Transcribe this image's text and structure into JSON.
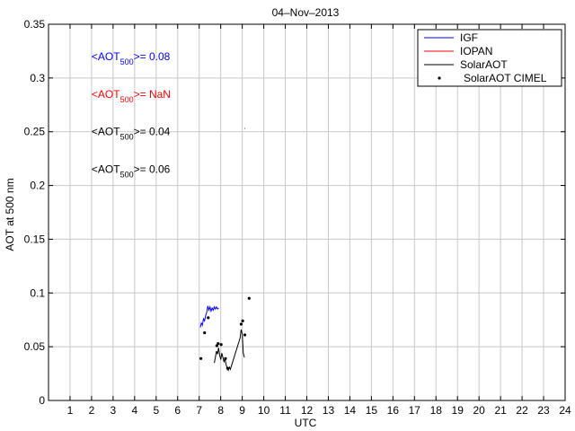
{
  "chart_data": {
    "type": "line",
    "title": "04–Nov–2013",
    "xlabel": "UTC",
    "ylabel": "AOT at 500 nm",
    "xlim": [
      0,
      24
    ],
    "ylim": [
      0,
      0.35
    ],
    "x_ticks": [
      1,
      2,
      3,
      4,
      5,
      6,
      7,
      8,
      9,
      10,
      11,
      12,
      13,
      14,
      15,
      16,
      17,
      18,
      19,
      20,
      21,
      22,
      23,
      24
    ],
    "y_ticks": [
      {
        "value": 0,
        "label": "0"
      },
      {
        "value": 0.05,
        "label": "0.05"
      },
      {
        "value": 0.1,
        "label": "0.1"
      },
      {
        "value": 0.15,
        "label": "0.15"
      },
      {
        "value": 0.2,
        "label": "0.2"
      },
      {
        "value": 0.25,
        "label": "0.25"
      },
      {
        "value": 0.3,
        "label": "0.3"
      },
      {
        "value": 0.35,
        "label": "0.35"
      }
    ],
    "grid": true,
    "legend_position": "top-right",
    "annotations": [
      {
        "prefix": "<AOT",
        "sub": "500",
        "suffix": ">= 0.08",
        "color": "#0000ff",
        "x": 2.5,
        "y": 0.32
      },
      {
        "prefix": "<AOT",
        "sub": "500",
        "suffix": ">=  NaN",
        "color": "#ff0000",
        "x": 2.5,
        "y": 0.285
      },
      {
        "prefix": "<AOT",
        "sub": "500",
        "suffix": ">= 0.04",
        "color": "#000000",
        "x": 2.5,
        "y": 0.25
      },
      {
        "prefix": "<AOT",
        "sub": "500",
        "suffix": ">= 0.06",
        "color": "#000000",
        "x": 2.5,
        "y": 0.215
      }
    ],
    "series": [
      {
        "name": "IGF",
        "style": "line",
        "color": "#0000ff",
        "points": [
          [
            7.05,
            0.068
          ],
          [
            7.1,
            0.072
          ],
          [
            7.15,
            0.07
          ],
          [
            7.2,
            0.076
          ],
          [
            7.25,
            0.074
          ],
          [
            7.3,
            0.079
          ],
          [
            7.35,
            0.082
          ],
          [
            7.4,
            0.088
          ],
          [
            7.45,
            0.084
          ],
          [
            7.5,
            0.087
          ],
          [
            7.55,
            0.083
          ],
          [
            7.6,
            0.086
          ],
          [
            7.65,
            0.084
          ],
          [
            7.7,
            0.087
          ],
          [
            7.75,
            0.085
          ],
          [
            7.8,
            0.087
          ],
          [
            7.85,
            0.085
          ],
          [
            7.9,
            0.086
          ]
        ]
      },
      {
        "name": "IOPAN",
        "style": "line",
        "color": "#ff0000",
        "points": []
      },
      {
        "name": "SolarAOT",
        "style": "line",
        "color": "#000000",
        "points": [
          [
            7.7,
            0.035
          ],
          [
            7.75,
            0.04
          ],
          [
            7.8,
            0.046
          ],
          [
            7.85,
            0.043
          ],
          [
            7.9,
            0.049
          ],
          [
            7.95,
            0.042
          ],
          [
            8.0,
            0.038
          ],
          [
            8.05,
            0.044
          ],
          [
            8.1,
            0.04
          ],
          [
            8.15,
            0.036
          ],
          [
            8.2,
            0.039
          ],
          [
            8.25,
            0.033
          ],
          [
            8.3,
            0.03
          ],
          [
            8.35,
            0.028
          ],
          [
            8.4,
            0.031
          ],
          [
            8.45,
            0.029
          ],
          [
            8.9,
            0.058
          ],
          [
            8.95,
            0.066
          ],
          [
            9.0,
            0.062
          ],
          [
            9.05,
            0.044
          ],
          [
            9.1,
            0.04
          ]
        ]
      },
      {
        "name": "SolarAOT CIMEL",
        "style": "markers",
        "color": "#000000",
        "points": [
          [
            7.08,
            0.039
          ],
          [
            7.25,
            0.063
          ],
          [
            7.42,
            0.077
          ],
          [
            7.82,
            0.051
          ],
          [
            7.88,
            0.053
          ],
          [
            8.02,
            0.052
          ],
          [
            8.22,
            0.039
          ],
          [
            8.32,
            0.03
          ],
          [
            8.95,
            0.071
          ],
          [
            9.02,
            0.074
          ],
          [
            9.12,
            0.061
          ],
          [
            9.32,
            0.095
          ]
        ]
      }
    ]
  }
}
